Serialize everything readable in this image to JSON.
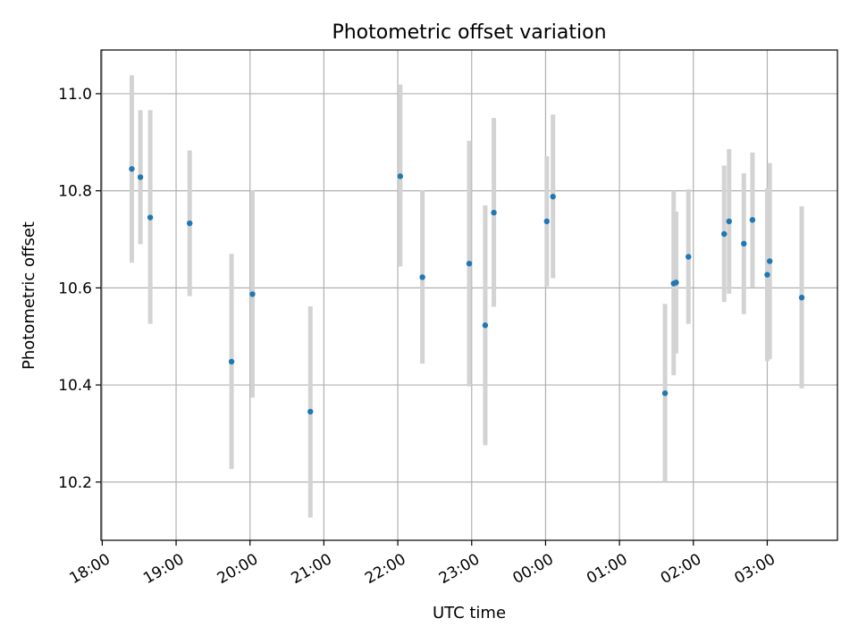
{
  "chart_data": {
    "type": "scatter",
    "title": "Photometric offset variation",
    "xlabel": "UTC time",
    "ylabel": "Photometric offset",
    "x_ticks": [
      "18:00",
      "19:00",
      "20:00",
      "21:00",
      "22:00",
      "23:00",
      "00:00",
      "01:00",
      "02:00",
      "03:00"
    ],
    "y_ticks": [
      "10.2",
      "10.4",
      "10.6",
      "10.8",
      "11.0"
    ],
    "xlim": [
      "17:59",
      "03:57"
    ],
    "ylim": [
      10.08,
      11.09
    ],
    "grid": true,
    "colors": {
      "point": "#1f77b4",
      "errorbar": "#d3d3d3",
      "grid": "#b0b0b0"
    },
    "points": [
      {
        "x": "18:24",
        "y": 10.845,
        "ylow": 10.652,
        "yhigh": 11.038
      },
      {
        "x": "18:31",
        "y": 10.828,
        "ylow": 10.69,
        "yhigh": 10.966
      },
      {
        "x": "18:39",
        "y": 10.745,
        "ylow": 10.526,
        "yhigh": 10.966
      },
      {
        "x": "19:11",
        "y": 10.733,
        "ylow": 10.583,
        "yhigh": 10.883
      },
      {
        "x": "19:45",
        "y": 10.448,
        "ylow": 10.227,
        "yhigh": 10.67
      },
      {
        "x": "20:02",
        "y": 10.587,
        "ylow": 10.374,
        "yhigh": 10.801
      },
      {
        "x": "20:49",
        "y": 10.345,
        "ylow": 10.127,
        "yhigh": 10.562
      },
      {
        "x": "22:02",
        "y": 10.83,
        "ylow": 10.644,
        "yhigh": 11.019
      },
      {
        "x": "22:20",
        "y": 10.622,
        "ylow": 10.444,
        "yhigh": 10.801
      },
      {
        "x": "22:58",
        "y": 10.65,
        "ylow": 10.397,
        "yhigh": 10.903
      },
      {
        "x": "23:11",
        "y": 10.523,
        "ylow": 10.276,
        "yhigh": 10.77
      },
      {
        "x": "23:18",
        "y": 10.755,
        "ylow": 10.561,
        "yhigh": 10.95
      },
      {
        "x": "00:01",
        "y": 10.737,
        "ylow": 10.603,
        "yhigh": 10.871
      },
      {
        "x": "00:06",
        "y": 10.788,
        "ylow": 10.62,
        "yhigh": 10.957
      },
      {
        "x": "01:37",
        "y": 10.383,
        "ylow": 10.2,
        "yhigh": 10.567
      },
      {
        "x": "01:44",
        "y": 10.609,
        "ylow": 10.42,
        "yhigh": 10.8
      },
      {
        "x": "01:46",
        "y": 10.611,
        "ylow": 10.465,
        "yhigh": 10.757
      },
      {
        "x": "01:56",
        "y": 10.664,
        "ylow": 10.526,
        "yhigh": 10.803
      },
      {
        "x": "02:25",
        "y": 10.711,
        "ylow": 10.571,
        "yhigh": 10.852
      },
      {
        "x": "02:29",
        "y": 10.737,
        "ylow": 10.588,
        "yhigh": 10.886
      },
      {
        "x": "02:41",
        "y": 10.691,
        "ylow": 10.546,
        "yhigh": 10.836
      },
      {
        "x": "02:48",
        "y": 10.74,
        "ylow": 10.601,
        "yhigh": 10.879
      },
      {
        "x": "03:00",
        "y": 10.627,
        "ylow": 10.449,
        "yhigh": 10.805
      },
      {
        "x": "03:02",
        "y": 10.655,
        "ylow": 10.453,
        "yhigh": 10.857
      },
      {
        "x": "03:28",
        "y": 10.58,
        "ylow": 10.393,
        "yhigh": 10.768
      }
    ]
  }
}
